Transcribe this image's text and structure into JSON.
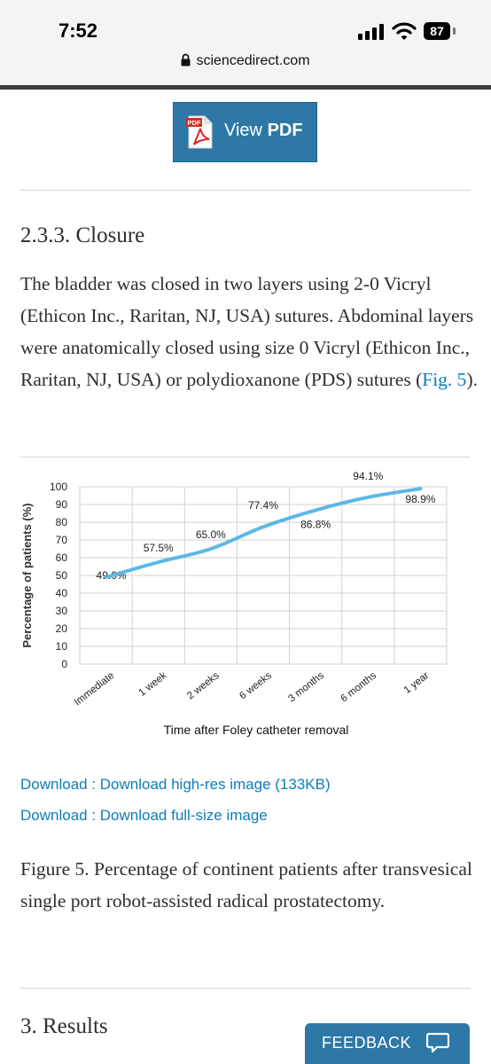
{
  "status_bar": {
    "time": "7:52",
    "battery_level": "87",
    "url": "sciencedirect.com"
  },
  "view_pdf": {
    "icon_text": "PDF",
    "label_prefix": "View",
    "label_strong": "PDF"
  },
  "section": {
    "heading": "2.3.3. Closure",
    "para_text": "The bladder was closed in two layers using 2-0 Vicryl (Ethicon Inc., Raritan, NJ, USA) sutures. Abdominal layers were anatomically closed using size 0 Vicryl (Ethicon Inc., Raritan, NJ, USA) or polydioxanone (PDS) sutures (",
    "fig_link": "Fig. 5",
    "para_end": ")."
  },
  "chart_data": {
    "type": "line",
    "categories": [
      "Immediate",
      "1 week",
      "2 weeks",
      "6 weeks",
      "3 months",
      "6 months",
      "1 year"
    ],
    "values": [
      49.0,
      57.5,
      65.0,
      77.4,
      86.8,
      94.1,
      98.9
    ],
    "data_labels": [
      "49.0%",
      "57.5%",
      "65.0%",
      "77.4%",
      "86.8%",
      "94.1%",
      "98.9%"
    ],
    "title": "",
    "xlabel": "Time after Foley catheter removal",
    "ylabel": "Percentage of patients (%)",
    "ylim": [
      0,
      100
    ],
    "yticks": [
      0,
      10,
      20,
      30,
      40,
      50,
      60,
      70,
      80,
      90,
      100
    ],
    "grid": true,
    "line_color": "#5bb8e6"
  },
  "downloads": {
    "hires": "Download : Download high-res image (133KB)",
    "full": "Download : Download full-size image"
  },
  "caption": "Figure 5. Percentage of continent patients after transvesical single port robot-assisted radical prostatectomy.",
  "results_heading": "3. Results",
  "feedback": {
    "label": "FEEDBACK"
  },
  "colors": {
    "accent": "#2d78a6",
    "link": "#0c7dbb"
  }
}
